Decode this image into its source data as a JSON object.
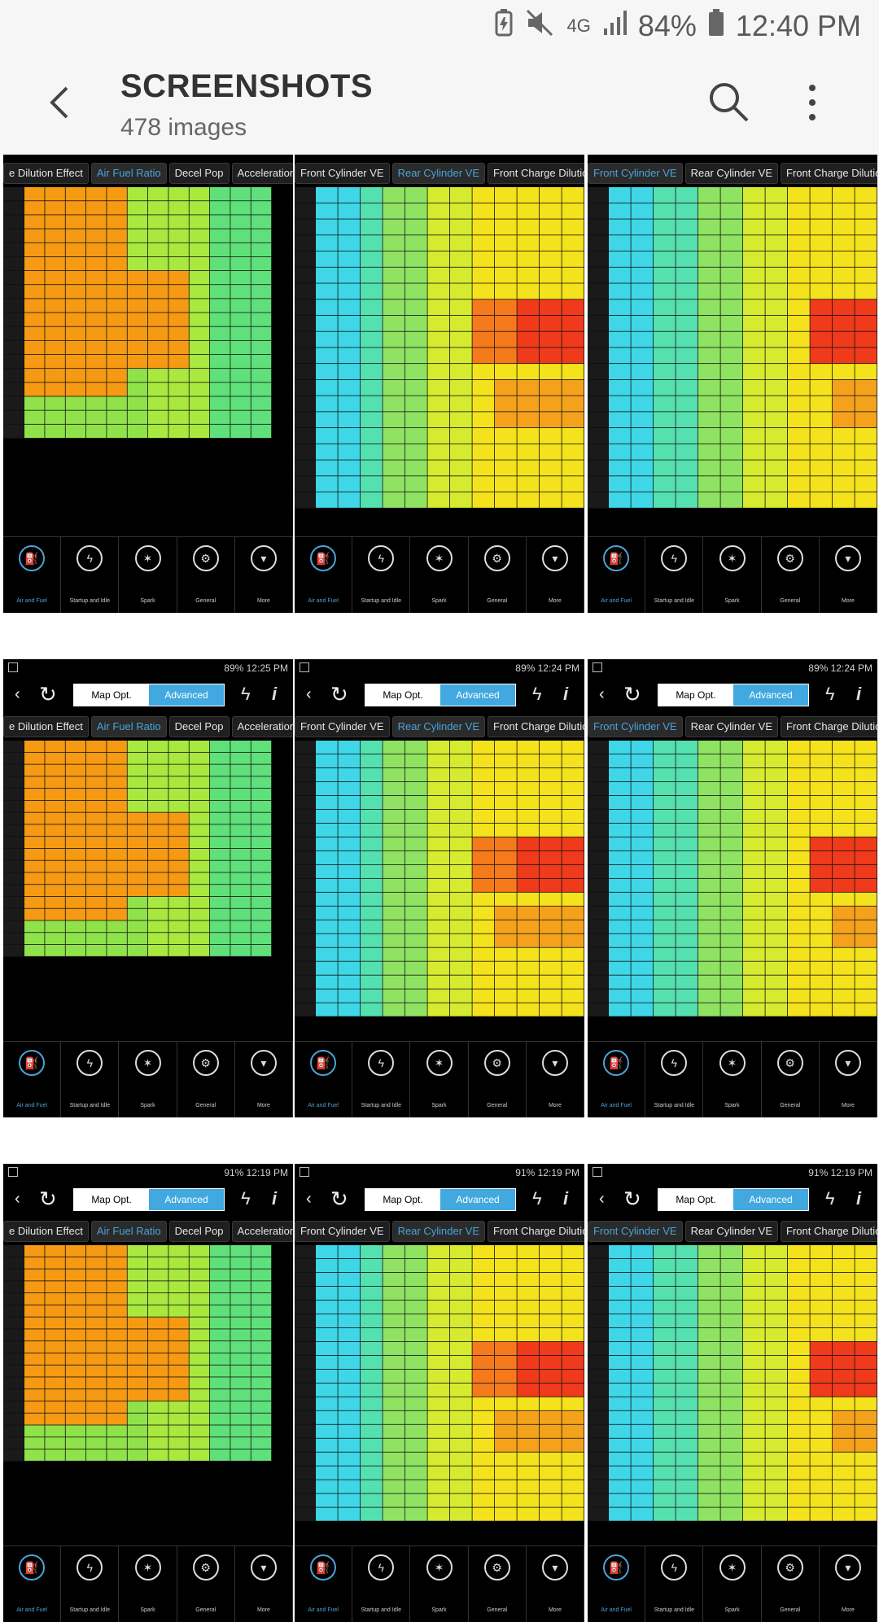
{
  "status_bar": {
    "network": "4G",
    "battery_pct": "84%",
    "time": "12:40 PM"
  },
  "header": {
    "title": "SCREENSHOTS",
    "subtitle": "478 images"
  },
  "tab_sets": {
    "a": {
      "tabs": [
        "e Dilution Effect",
        "Air Fuel Ratio",
        "Decel Pop",
        "Acceleration Enrichm"
      ],
      "selected": 1,
      "theme": "afr"
    },
    "b": {
      "tabs": [
        "Front Cylinder VE",
        "Rear Cylinder VE",
        "Front Charge Dilution Effec"
      ],
      "selected": 1,
      "theme": "ve"
    },
    "c": {
      "tabs": [
        "Front Cylinder VE",
        "Rear Cylinder VE",
        "Front Charge Dilution Effec"
      ],
      "selected": 0,
      "theme": "ve2"
    }
  },
  "toolbar": {
    "map_opt_label": "Map Opt.",
    "advanced_label": "Advanced"
  },
  "bottom_nav": [
    {
      "label": "Air and Fuel",
      "icon": "fuel-icon"
    },
    {
      "label": "Startup and Idle",
      "icon": "startup-icon"
    },
    {
      "label": "Spark",
      "icon": "spark-icon"
    },
    {
      "label": "General",
      "icon": "engine-icon"
    },
    {
      "label": "More",
      "icon": "more-icon"
    }
  ],
  "thumbnails": [
    {
      "set": "a",
      "status": ""
    },
    {
      "set": "b",
      "status": ""
    },
    {
      "set": "c",
      "status": ""
    },
    {
      "set": "a",
      "status": "89% 12:25 PM"
    },
    {
      "set": "b",
      "status": "89% 12:24 PM"
    },
    {
      "set": "c",
      "status": "89% 12:24 PM"
    },
    {
      "set": "a",
      "status": "91% 12:19 PM"
    },
    {
      "set": "b",
      "status": "91% 12:19 PM"
    },
    {
      "set": "c",
      "status": "91% 12:19 PM"
    }
  ],
  "colors": {
    "selected_tab": "#4aa3d8",
    "seg_active": "#41a9e0",
    "bar_bg": "#f6f6f6"
  }
}
